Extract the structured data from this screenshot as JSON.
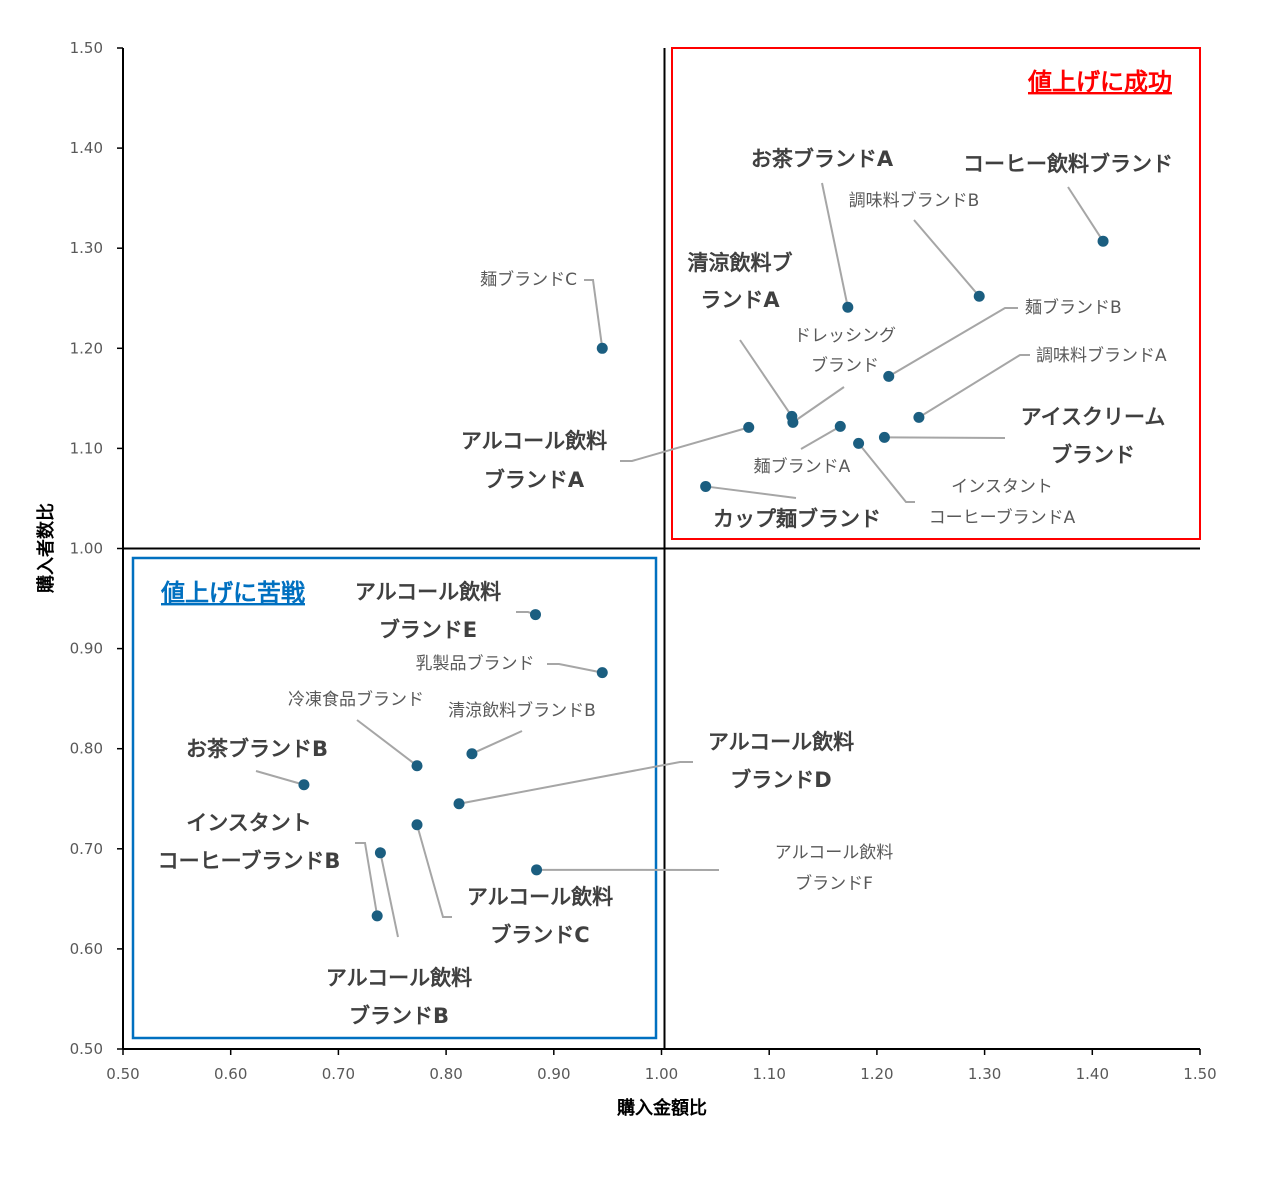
{
  "chart_data": {
    "type": "scatter",
    "title": "",
    "xlabel": "購入金額比",
    "ylabel": "購入者数比",
    "xlim": [
      0.5,
      1.5
    ],
    "ylim": [
      0.5,
      1.5
    ],
    "xticks": [
      "0.50",
      "0.60",
      "0.70",
      "0.80",
      "0.90",
      "1.00",
      "1.10",
      "1.20",
      "1.30",
      "1.40",
      "1.50"
    ],
    "yticks": [
      "0.50",
      "0.60",
      "0.70",
      "0.80",
      "0.90",
      "1.00",
      "1.10",
      "1.20",
      "1.30",
      "1.40",
      "1.50"
    ],
    "grid": false,
    "quadrant_lines": {
      "x": 1.0,
      "y": 1.0
    },
    "annotations": {
      "success": {
        "text": "値上げに成功",
        "color": "#ff0000"
      },
      "struggle": {
        "text": "値上げに苦戦",
        "color": "#0070c0"
      }
    },
    "point_color": "#1b5e80",
    "points": [
      {
        "label": [
          "麺ブランドC"
        ],
        "x": 0.945,
        "y": 1.2,
        "emphasis": false
      },
      {
        "label": [
          "お茶ブランドA"
        ],
        "x": 1.173,
        "y": 1.241,
        "emphasis": true
      },
      {
        "label": [
          "コーヒー飲料ブランド"
        ],
        "x": 1.41,
        "y": 1.307,
        "emphasis": true
      },
      {
        "label": [
          "調味料ブランドB"
        ],
        "x": 1.295,
        "y": 1.252,
        "emphasis": false
      },
      {
        "label": [
          "麺ブランドB"
        ],
        "x": 1.211,
        "y": 1.172,
        "emphasis": false
      },
      {
        "label": [
          "調味料ブランドA"
        ],
        "x": 1.239,
        "y": 1.131,
        "emphasis": false
      },
      {
        "label": [
          "清涼飲料ブ",
          "ランドA"
        ],
        "x": 1.121,
        "y": 1.132,
        "emphasis": true
      },
      {
        "label": [
          "ドレッシング",
          "ブランド"
        ],
        "x": 1.122,
        "y": 1.126,
        "emphasis": false
      },
      {
        "label": [
          "アルコール飲料",
          "ブランドA"
        ],
        "x": 1.081,
        "y": 1.121,
        "emphasis": true
      },
      {
        "label": [
          "麺ブランドA"
        ],
        "x": 1.166,
        "y": 1.122,
        "emphasis": false
      },
      {
        "label": [
          "アイスクリーム",
          "ブランド"
        ],
        "x": 1.207,
        "y": 1.111,
        "emphasis": true
      },
      {
        "label": [
          "インスタント",
          "コーヒーブランドA"
        ],
        "x": 1.183,
        "y": 1.105,
        "emphasis": false
      },
      {
        "label": [
          "カップ麺ブランド"
        ],
        "x": 1.041,
        "y": 1.062,
        "emphasis": true
      },
      {
        "label": [
          "アルコール飲料",
          "ブランドE"
        ],
        "x": 0.883,
        "y": 0.934,
        "emphasis": true
      },
      {
        "label": [
          "乳製品ブランド"
        ],
        "x": 0.945,
        "y": 0.876,
        "emphasis": false
      },
      {
        "label": [
          "冷凍食品ブランド"
        ],
        "x": 0.773,
        "y": 0.783,
        "emphasis": false
      },
      {
        "label": [
          "清涼飲料ブランドB"
        ],
        "x": 0.824,
        "y": 0.795,
        "emphasis": false
      },
      {
        "label": [
          "お茶ブランドB"
        ],
        "x": 0.668,
        "y": 0.764,
        "emphasis": true
      },
      {
        "label": [
          "アルコール飲料",
          "ブランドD"
        ],
        "x": 0.812,
        "y": 0.745,
        "emphasis": true
      },
      {
        "label": [
          "アルコール飲料",
          "ブランドC"
        ],
        "x": 0.773,
        "y": 0.724,
        "emphasis": true
      },
      {
        "label": [
          "インスタント",
          "コーヒーブランドB"
        ],
        "x": 0.736,
        "y": 0.633,
        "emphasis": true
      },
      {
        "label": [
          "アルコール飲料",
          "ブランドB"
        ],
        "x": 0.739,
        "y": 0.696,
        "emphasis": true
      },
      {
        "label": [
          "アルコール飲料",
          "ブランドF"
        ],
        "x": 0.884,
        "y": 0.679,
        "emphasis": false
      }
    ]
  }
}
